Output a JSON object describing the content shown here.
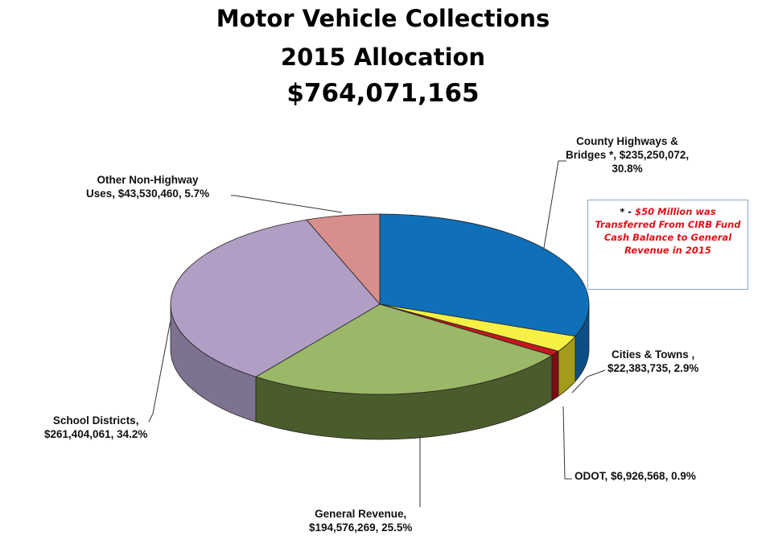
{
  "title": {
    "line1": "Motor Vehicle Collections",
    "line2": "2015 Allocation",
    "line3": "$764,071,165"
  },
  "note": {
    "star": "* - ",
    "text": "$50 Million was Transferred From CIRB Fund Cash Balance to General Revenue in 2015"
  },
  "chart_data": {
    "type": "pie",
    "style": "3d",
    "total": 764071165,
    "slices": [
      {
        "name": "County Highways & Bridges *",
        "value": 235250072,
        "percent": 30.8,
        "color": "#0f6fb8",
        "side_color": "#0b4f86",
        "label": "County Highways & Bridges *, $235,250,072, 30.8%"
      },
      {
        "name": "Cities & Towns",
        "value": 22383735,
        "percent": 2.9,
        "color": "#f6f045",
        "side_color": "#a39b1a",
        "label": "Cities & Towns , $22,383,735, 2.9%"
      },
      {
        "name": "ODOT",
        "value": 6926568,
        "percent": 0.9,
        "color": "#c8161d",
        "side_color": "#7e0c10",
        "label": "ODOT, $6,926,568, 0.9%"
      },
      {
        "name": "General Revenue",
        "value": 194576269,
        "percent": 25.5,
        "color": "#9ab868",
        "side_color": "#4a5c2b",
        "label": "General Revenue, $194,576,269, 25.5%"
      },
      {
        "name": "School Districts",
        "value": 261404061,
        "percent": 34.2,
        "color": "#b09ec4",
        "side_color": "#7e7291",
        "label": "School Districts, $261,404,061, 34.2%"
      },
      {
        "name": "Other Non-Highway Uses",
        "value": 43530460,
        "percent": 5.7,
        "color": "#d88e8c",
        "side_color": "#9a5e5c",
        "label": "Other Non-Highway Uses, $43,530,460, 5.7%"
      }
    ]
  },
  "labels": {
    "county": "County Highways &\nBridges *, $235,250,072,\n30.8%",
    "cities": "Cities & Towns ,\n$22,383,735, 2.9%",
    "odot": "ODOT, $6,926,568, 0.9%",
    "general": "General Revenue,\n$194,576,269, 25.5%",
    "school": "School Districts,\n$261,404,061, 34.2%",
    "other": "Other Non-Highway\nUses, $43,530,460, 5.7%"
  }
}
